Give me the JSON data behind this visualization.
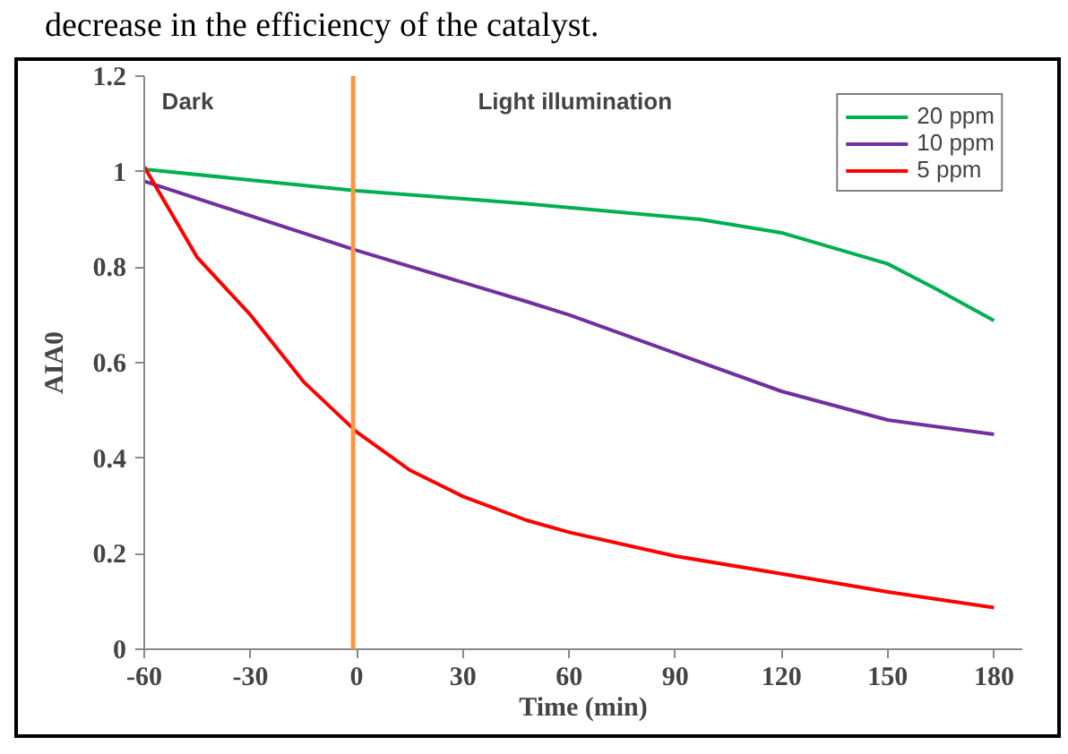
{
  "chart_data": {
    "type": "line",
    "xlabel": "Time (min)",
    "ylabel": "AIA0",
    "series": [
      {
        "name": "20 ppm",
        "color": "#00b050",
        "x": [
          -60,
          0,
          48,
          97,
          120,
          150,
          163,
          180
        ],
        "values": [
          1.005,
          0.96,
          0.933,
          0.9,
          0.872,
          0.807,
          0.757,
          0.688
        ]
      },
      {
        "name": "10 ppm",
        "color": "#7030a0",
        "x": [
          -60,
          0,
          48,
          60,
          90,
          120,
          150,
          180
        ],
        "values": [
          0.98,
          0.835,
          0.728,
          0.7,
          0.62,
          0.54,
          0.48,
          0.45
        ]
      },
      {
        "name": "5 ppm",
        "color": "#ff0000",
        "x": [
          -60,
          -45,
          -30,
          -15,
          0,
          15,
          30,
          48,
          60,
          90,
          120,
          150,
          180
        ],
        "values": [
          1.01,
          0.82,
          0.7,
          0.56,
          0.455,
          0.375,
          0.32,
          0.27,
          0.245,
          0.195,
          0.158,
          0.12,
          0.087
        ]
      }
    ],
    "xlim": [
      -60,
      188
    ],
    "ylim": [
      0,
      1.2
    ],
    "xticks": [
      -60,
      -30,
      0,
      30,
      60,
      90,
      120,
      150,
      180
    ],
    "yticks": [
      0,
      0.2,
      0.4,
      0.6,
      0.8,
      1,
      1.2
    ],
    "ref_lines": [
      {
        "axis": "x",
        "value": -1,
        "color": "#f79646"
      }
    ],
    "annotations": [
      "decrease in the efficiency of the catalyst.",
      "Dark",
      "Light illumination"
    ],
    "grid": false,
    "legend": "top right",
    "marker": "none",
    "line_style": "solid"
  }
}
